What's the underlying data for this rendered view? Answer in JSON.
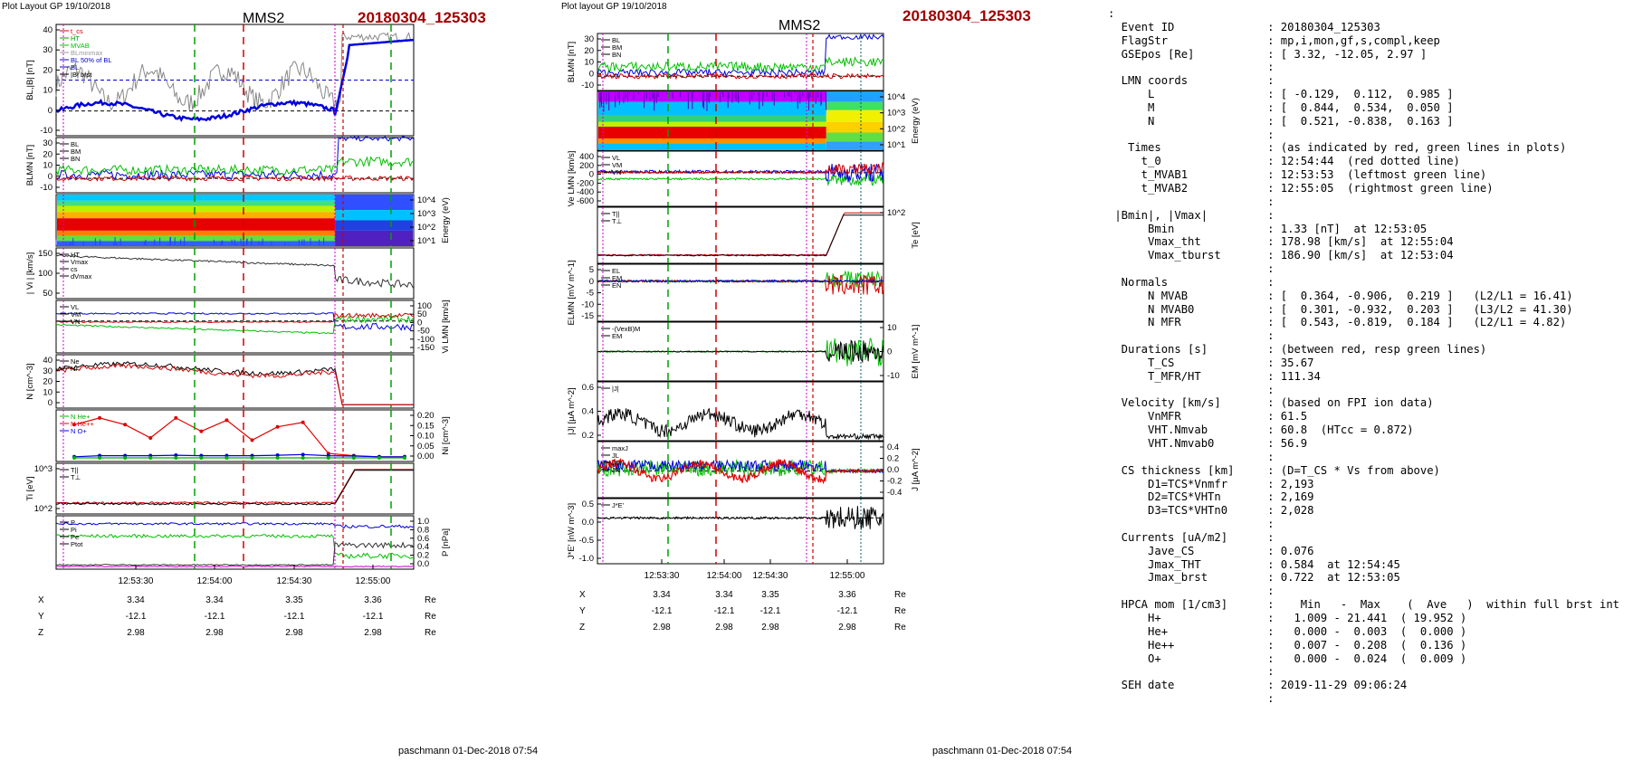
{
  "left": {
    "header": "Plot Layout GP 19/10/2018",
    "spacecraft": "MMS2",
    "event": "20180304_125303",
    "footer": "paschmann 01-Dec-2018 07:54",
    "time_ticks": [
      "12:53:30",
      "12:54:00",
      "12:54:30",
      "12:55:00"
    ],
    "ephem": [
      {
        "name": "X",
        "vals": [
          "3.34",
          "3.34",
          "3.35",
          "3.36"
        ],
        "unit": "Re"
      },
      {
        "name": "Y",
        "vals": [
          "-12.1",
          "-12.1",
          "-12.1",
          "-12.1"
        ],
        "unit": "Re"
      },
      {
        "name": "Z",
        "vals": [
          "2.98",
          "2.98",
          "2.98",
          "2.98"
        ],
        "unit": "Re"
      }
    ],
    "panels": {
      "b": {
        "ylabel": "BL,|B| [nT]",
        "ticks": [
          "40",
          "30",
          "20",
          "10",
          "0",
          "-10"
        ],
        "legend": [
          "t_cs",
          "HT",
          "MVAB",
          "BLminmax",
          "BL 50% of BL",
          "BL",
          "|B| brst"
        ],
        "legend_colors": [
          "#d00000",
          "#00a000",
          "#00c000",
          "#999999",
          "#0000cc",
          "#0000cc",
          "#000000"
        ]
      },
      "blmn": {
        "ylabel": "BLMN [nT]",
        "ticks": [
          "30",
          "20",
          "10",
          "0",
          "-10"
        ],
        "legend": [
          "BL",
          "BM",
          "BN"
        ]
      },
      "spec": {
        "ylabel": "Energy (eV)",
        "ticks": [
          "10^4",
          "10^3",
          "10^2",
          "10^1"
        ]
      },
      "vi": {
        "ylabel": "| Vi | [km/s]",
        "ticks": [
          "150",
          "100",
          "50"
        ],
        "legend": [
          "HT",
          "Vmax",
          "cs",
          "dVmax"
        ]
      },
      "vlmn": {
        "ylabel": "Vi LMN [km/s]",
        "ticks": [
          "100",
          "50",
          "0",
          "-50",
          "-100",
          "-150"
        ],
        "legend": [
          "VL",
          "VM",
          "VN"
        ]
      },
      "n": {
        "ylabel": "N [cm^-3]",
        "ticks": [
          "40",
          "30",
          "20",
          "10",
          "0"
        ],
        "legend": [
          "Ne",
          "Ni"
        ]
      },
      "nhp": {
        "ylabel": "Ni [cm^-3]",
        "ticks": [
          "0.20",
          "0.15",
          "0.10",
          "0.05",
          "0.00"
        ],
        "legend": [
          "N He+",
          "N He++",
          "N O+"
        ],
        "legend_colors": [
          "#00b000",
          "#e00000",
          "#0000dd"
        ]
      },
      "ti": {
        "ylabel": "Ti [eV]",
        "ticks": [
          "10^3",
          "10^2"
        ],
        "legend": [
          "T||",
          "T⊥"
        ]
      },
      "p": {
        "ylabel": "P [nPa]",
        "ticks": [
          "1.0",
          "0.8",
          "0.6",
          "0.4",
          "0.2",
          "0.0"
        ],
        "legend": [
          "P",
          "Pi",
          "Pe",
          "Ptot"
        ]
      }
    }
  },
  "mid": {
    "header": "Plot layout GP 19/10/2018",
    "spacecraft": "MMS2",
    "event": "20180304_125303",
    "footer": "paschmann 01-Dec-2018 07:54",
    "time_ticks": [
      "12:53:30",
      "12:54:00",
      "12:54:30",
      "12:55:00"
    ],
    "ephem": [
      {
        "name": "X",
        "vals": [
          "3.34",
          "3.34",
          "3.35",
          "3.36"
        ],
        "unit": "Re"
      },
      {
        "name": "Y",
        "vals": [
          "-12.1",
          "-12.1",
          "-12.1",
          "-12.1"
        ],
        "unit": "Re"
      },
      {
        "name": "Z",
        "vals": [
          "2.98",
          "2.98",
          "2.98",
          "2.98"
        ],
        "unit": "Re"
      }
    ],
    "panels": {
      "blmn": {
        "ylabel": "BLMN [nT]",
        "ticks": [
          "30",
          "20",
          "10",
          "0",
          "-10"
        ],
        "legend": [
          "BL",
          "BM",
          "BN"
        ]
      },
      "spec": {
        "ylabel": "Energy (eV)",
        "ticks": [
          "10^4",
          "10^3",
          "10^2",
          "10^1"
        ]
      },
      "ve": {
        "ylabel": "Ve LMN [km/s]",
        "ticks": [
          "400",
          "200",
          "0",
          "-200",
          "-400",
          "-600"
        ],
        "legend": [
          "VL",
          "VM",
          "VN"
        ]
      },
      "te": {
        "ylabel": "Te [eV]",
        "ticks": [
          "10^2"
        ],
        "legend": [
          "T||",
          "T⊥"
        ]
      },
      "e": {
        "ylabel": "ELMN [mV m^-1]",
        "ticks": [
          "5",
          "0",
          "-5",
          "-10",
          "-15"
        ],
        "legend": [
          "EL",
          "EM",
          "EN"
        ]
      },
      "em": {
        "ylabel": "EM [mV m^-1]",
        "ticks": [
          "10",
          "0",
          "-10"
        ],
        "legend": [
          "-(VexB)M",
          "EM"
        ]
      },
      "j": {
        "ylabel": "|J| [µA m^-2]",
        "ticks": [
          "0.6",
          "0.4",
          "0.2"
        ],
        "legend": [
          "|J|"
        ]
      },
      "jlmn": {
        "ylabel": "J [µA m^-2]",
        "ticks": [
          "0.4",
          "0.2",
          "0.0",
          "-0.2",
          "-0.4"
        ],
        "legend": [
          "maxJ",
          "JL",
          "JM",
          "JN"
        ]
      },
      "je": {
        "ylabel": "J*E' [nW m^-3]",
        "ticks": [
          "0.5",
          "0.0",
          "-0.5",
          "-1.0"
        ],
        "legend": [
          "J*E'"
        ]
      }
    }
  },
  "summary": {
    "rows": [
      {
        "k": ":",
        "v": ""
      },
      {
        "k": "  Event ID",
        "v": ": 20180304_125303"
      },
      {
        "k": "  FlagStr",
        "v": ": mp,i,mon,gf,s,compl,keep"
      },
      {
        "k": "  GSEpos [Re]",
        "v": ": [ 3.32, -12.05, 2.97 ]"
      },
      {
        "k": "",
        "v": ":"
      },
      {
        "k": "  LMN coords",
        "v": ":"
      },
      {
        "k": "      L",
        "v": ": [ -0.129,  0.112,  0.985 ]"
      },
      {
        "k": "      M",
        "v": ": [  0.844,  0.534,  0.050 ]"
      },
      {
        "k": "      N",
        "v": ": [  0.521, -0.838,  0.163 ]"
      },
      {
        "k": "",
        "v": ":"
      },
      {
        "k": "   Times",
        "v": ": (as indicated by red, green lines in plots)"
      },
      {
        "k": "     t_0",
        "v": ": 12:54:44  (red dotted line)"
      },
      {
        "k": "     t_MVAB1",
        "v": ": 12:53:53  (leftmost green line)"
      },
      {
        "k": "     t_MVAB2",
        "v": ": 12:55:05  (rightmost green line)"
      },
      {
        "k": "",
        "v": ":"
      },
      {
        "k": " |Bmin|, |Vmax|",
        "v": ":"
      },
      {
        "k": "      Bmin",
        "v": ": 1.33 [nT]  at 12:53:05"
      },
      {
        "k": "      Vmax_tht",
        "v": ": 178.98 [km/s]  at 12:55:04"
      },
      {
        "k": "      Vmax_tburst",
        "v": ": 186.90 [km/s]  at 12:53:04"
      },
      {
        "k": "",
        "v": ":"
      },
      {
        "k": "  Normals",
        "v": ":"
      },
      {
        "k": "      N MVAB",
        "v": ": [  0.364, -0.906,  0.219 ]   (L2/L1 = 16.41)"
      },
      {
        "k": "      N MVAB0",
        "v": ": [  0.301, -0.932,  0.203 ]   (L3/L2 = 41.30)"
      },
      {
        "k": "      N MFR",
        "v": ": [  0.543, -0.819,  0.184 ]   (L2/L1 = 4.82)"
      },
      {
        "k": "",
        "v": ":"
      },
      {
        "k": "  Durations [s]",
        "v": ": (between red, resp green lines)"
      },
      {
        "k": "      T_CS",
        "v": ": 35.67"
      },
      {
        "k": "      T_MFR/HT",
        "v": ": 111.34"
      },
      {
        "k": "",
        "v": ":"
      },
      {
        "k": "  Velocity [km/s]",
        "v": ": (based on FPI ion data)"
      },
      {
        "k": "      VnMFR",
        "v": ": 61.5"
      },
      {
        "k": "      VHT.Nmvab",
        "v": ": 60.8  (HTcc = 0.872)"
      },
      {
        "k": "      VHT.Nmvab0",
        "v": ": 56.9"
      },
      {
        "k": "",
        "v": ":"
      },
      {
        "k": "  CS thickness [km]",
        "v": ": (D=T_CS * Vs from above)"
      },
      {
        "k": "      D1=TCS*Vnmfr",
        "v": ": 2,193"
      },
      {
        "k": "      D2=TCS*VHTn",
        "v": ": 2,169"
      },
      {
        "k": "      D3=TCS*VHTn0",
        "v": ": 2,028"
      },
      {
        "k": "",
        "v": ":"
      },
      {
        "k": "  Currents [uA/m2]",
        "v": ":"
      },
      {
        "k": "      Jave_CS",
        "v": ": 0.076"
      },
      {
        "k": "      Jmax_THT",
        "v": ": 0.584  at 12:54:45"
      },
      {
        "k": "      Jmax_brst",
        "v": ": 0.722  at 12:53:05"
      },
      {
        "k": "",
        "v": ":"
      },
      {
        "k": "  HPCA mom [1/cm3]",
        "v": ":    Min   -  Max    (  Ave   )  within full brst int"
      },
      {
        "k": "      H+",
        "v": ":   1.009 - 21.441  ( 19.952 )"
      },
      {
        "k": "      He+",
        "v": ":   0.000 -  0.003  (  0.000 )"
      },
      {
        "k": "      He++",
        "v": ":   0.007 -  0.208  (  0.136 )"
      },
      {
        "k": "      O+",
        "v": ":   0.000 -  0.024  (  0.009 )"
      },
      {
        "k": "",
        "v": ":"
      },
      {
        "k": "  SEH date",
        "v": ": 2019-11-29 09:06:24"
      },
      {
        "k": "",
        "v": ":"
      }
    ]
  },
  "chart_data": [
    {
      "type": "line",
      "title": "MMS2",
      "panel": "left N He",
      "xlabel": "",
      "ylabel": "Ni [cm^-3]",
      "x": [
        "12:53:03",
        "12:53:13",
        "12:53:23",
        "12:53:33",
        "12:53:43",
        "12:53:53",
        "12:54:03",
        "12:54:13",
        "12:54:23",
        "12:54:33",
        "12:54:43",
        "12:54:53",
        "12:55:03",
        "12:55:13"
      ],
      "series": [
        {
          "name": "N He++",
          "values": [
            0.15,
            0.18,
            0.15,
            0.09,
            0.18,
            0.12,
            0.17,
            0.08,
            0.14,
            0.16,
            0.02,
            0.01,
            0.005,
            0.005
          ]
        },
        {
          "name": "N O+",
          "values": [
            0.005,
            0.01,
            0.01,
            0.01,
            0.012,
            0.01,
            0.01,
            0.01,
            0.012,
            0.015,
            0.01,
            0.008,
            0.005,
            0.005
          ]
        },
        {
          "name": "N He+",
          "values": [
            0.0,
            0.0,
            0.0,
            0.0,
            0.0,
            0.0,
            0.0,
            0.0,
            0.0,
            0.0,
            0.0,
            0.0,
            0.0,
            0.0
          ]
        }
      ],
      "ylim": [
        0,
        0.2
      ]
    },
    {
      "type": "line",
      "panel": "left BL |B|",
      "ylabel": "BL,|B| [nT]",
      "ylim": [
        -10,
        40
      ],
      "x": [
        "12:53:03",
        "12:53:30",
        "12:54:00",
        "12:54:30",
        "12:54:44",
        "12:55:05",
        "12:55:20"
      ],
      "series": [
        {
          "name": "BL",
          "values": [
            -2,
            -2,
            2,
            2,
            30,
            33,
            35
          ]
        },
        {
          "name": "|B|",
          "values": [
            5,
            18,
            15,
            20,
            38,
            34,
            35
          ]
        }
      ]
    },
    {
      "type": "line",
      "panel": "mid |J|",
      "ylabel": "|J| [µA m^-2]",
      "ylim": [
        0,
        0.7
      ],
      "x": [
        "12:53:03",
        "12:53:30",
        "12:54:00",
        "12:54:30",
        "12:54:44",
        "12:55:05",
        "12:55:20"
      ],
      "series": [
        {
          "name": "|J|",
          "values": [
            0.3,
            0.2,
            0.2,
            0.25,
            0.3,
            0.05,
            0.05
          ]
        }
      ]
    }
  ]
}
